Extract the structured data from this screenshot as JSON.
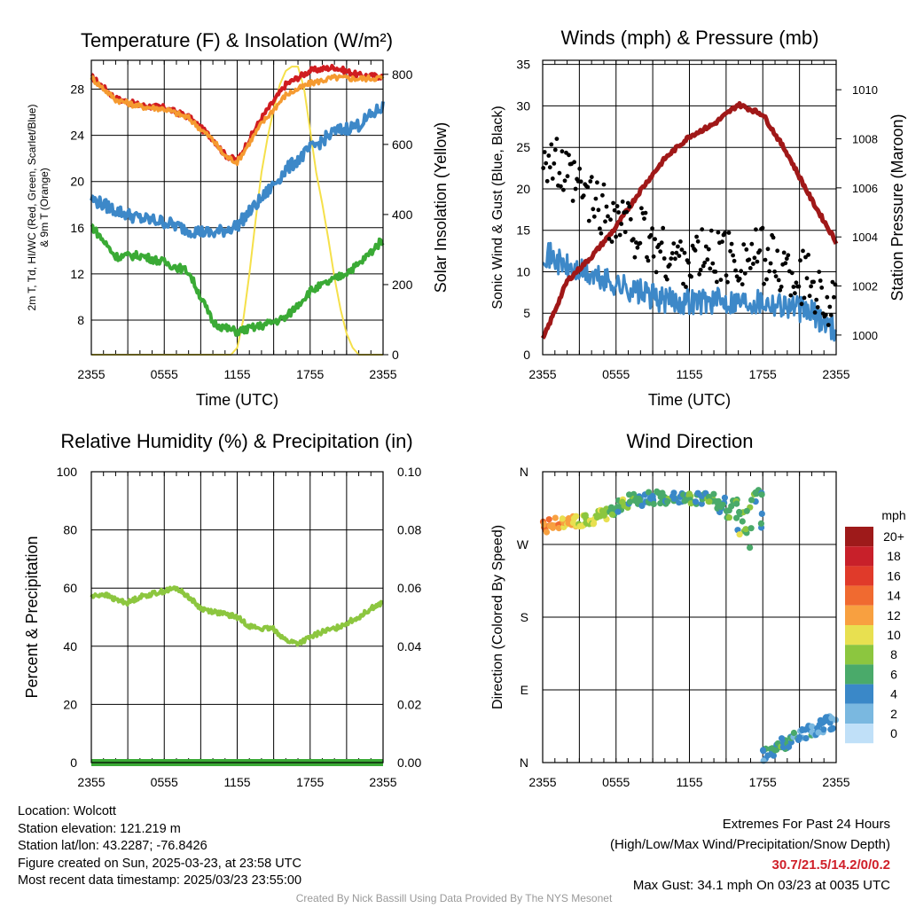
{
  "colors": {
    "red": "#d01c20",
    "orange": "#f59a30",
    "blue": "#3d88c8",
    "green": "#3aaa35",
    "yellow": "#f5e04a",
    "maroon": "#a01818",
    "black": "#000000",
    "rh": "#8cc63f",
    "precip": "#3aaa35"
  },
  "chart_data": [
    {
      "type": "line",
      "title": "Temperature (F) & Insolation (W/m²)",
      "xlabel": "Time (UTC)",
      "ylabel": "2m T, Td, HI/WC (Red, Green, Scarlet/Blue) & 9m T (Orange)",
      "y2label": "Solar Insolation (Yellow)",
      "ticks": [
        "2355",
        "0555",
        "1155",
        "1755",
        "2355"
      ],
      "ylim": [
        5,
        30.5
      ],
      "yticks": [
        8,
        12,
        16,
        20,
        24,
        28
      ],
      "y2lim": [
        0,
        840
      ],
      "y2ticks": [
        0,
        200,
        400,
        600,
        800
      ],
      "x": [
        0,
        2,
        4,
        6,
        8,
        10,
        11,
        12,
        14,
        16,
        18,
        20,
        22,
        24
      ],
      "series": [
        {
          "color": "red",
          "values": [
            29.1,
            27.2,
            26.6,
            26.4,
            25.6,
            23.7,
            22.3,
            21.8,
            25.5,
            28.4,
            29.6,
            29.9,
            29.2,
            29.1
          ]
        },
        {
          "color": "orange",
          "values": [
            29.0,
            27.1,
            26.5,
            26.3,
            25.5,
            23.6,
            22.2,
            21.7,
            25.0,
            27.5,
            28.5,
            29.0,
            28.9,
            29.0
          ]
        },
        {
          "color": "blue",
          "values": [
            18.5,
            17.5,
            16.8,
            16.5,
            15.8,
            15.5,
            15.8,
            16.2,
            18.5,
            21.0,
            22.8,
            24.3,
            24.9,
            26.5
          ]
        },
        {
          "color": "green",
          "values": [
            16.2,
            13.5,
            13.6,
            13.0,
            12.2,
            7.8,
            7.3,
            7.0,
            7.5,
            8.2,
            10.5,
            11.5,
            12.8,
            15.0
          ]
        }
      ],
      "insolation": {
        "x": [
          0,
          11.5,
          12,
          12.5,
          13,
          13.5,
          14,
          14.5,
          15,
          15.5,
          16,
          16.5,
          17,
          17.5,
          18,
          18.5,
          19,
          19.5,
          20,
          20.5,
          21,
          21.5,
          22,
          24
        ],
        "values": [
          0,
          0,
          20,
          100,
          230,
          380,
          520,
          620,
          700,
          770,
          810,
          822,
          822,
          760,
          640,
          520,
          430,
          330,
          220,
          130,
          60,
          20,
          0,
          0
        ]
      }
    },
    {
      "type": "line",
      "title": "Winds (mph) & Pressure (mb)",
      "xlabel": "Time (UTC)",
      "ylabel": "Sonic Wind & Gust (Blue, Black)",
      "y2label": "Station Pressure (Maroon)",
      "ticks": [
        "2355",
        "0555",
        "1155",
        "1755",
        "2355"
      ],
      "ylim": [
        0,
        35.5
      ],
      "yticks": [
        0,
        5,
        10,
        15,
        20,
        25,
        30,
        35
      ],
      "y2lim": [
        999.2,
        1011.2
      ],
      "y2ticks": [
        1000,
        1002,
        1004,
        1006,
        1008,
        1010
      ],
      "x": [
        0,
        2,
        4,
        6,
        8,
        10,
        12,
        14,
        16,
        18,
        20,
        22,
        24
      ],
      "wind": [
        12.5,
        10.5,
        9.5,
        8.5,
        7.5,
        6.5,
        6.5,
        6.5,
        6.5,
        6.5,
        6.0,
        5.0,
        3.0
      ],
      "gust": [
        25.0,
        21.0,
        18.5,
        16.5,
        14.5,
        12.0,
        11.5,
        12.0,
        11.5,
        12.0,
        10.0,
        9.0,
        5.0
      ],
      "pressure": [
        999.8,
        1002.2,
        1003.2,
        1004.4,
        1005.9,
        1007.2,
        1008.1,
        1008.6,
        1009.4,
        1009.0,
        1007.4,
        1005.5,
        1003.8
      ]
    },
    {
      "type": "line",
      "title": "Relative Humidity (%) & Precipitation (in)",
      "ylabel": "Percent & Precipitation",
      "ticks": [
        "2355",
        "0555",
        "1155",
        "1755",
        "2355"
      ],
      "ylim": [
        0,
        100
      ],
      "yticks": [
        0,
        20,
        40,
        60,
        80,
        100
      ],
      "y2lim": [
        0,
        0.1
      ],
      "y2ticks": [
        "0.00",
        "0.02",
        "0.04",
        "0.06",
        "0.08",
        "0.10"
      ],
      "x": [
        0,
        1,
        2,
        3,
        4,
        5,
        6,
        7,
        8,
        9,
        10,
        11,
        12,
        13,
        14,
        15,
        16,
        17,
        18,
        19,
        20,
        21,
        22,
        23,
        24
      ],
      "rh": [
        57,
        58,
        56,
        55,
        57,
        58,
        59,
        60,
        57,
        53,
        52,
        51,
        50,
        47,
        46,
        46,
        42,
        41,
        43,
        45,
        46,
        48,
        50,
        53,
        55
      ],
      "precip": 0
    },
    {
      "type": "scatter",
      "title": "Wind Direction",
      "ylabel": "Direction (Colored By Speed)",
      "ticks": [
        "2355",
        "0555",
        "1155",
        "1755",
        "2355"
      ],
      "ylim": [
        0,
        360
      ],
      "yticklabels": [
        "N",
        "E",
        "S",
        "W",
        "N"
      ],
      "legend": {
        "title": "mph",
        "labels": [
          "20+",
          "18",
          "16",
          "14",
          "12",
          "10",
          "8",
          "6",
          "4",
          "2",
          "0"
        ],
        "colors": [
          "#9e1a1a",
          "#c8202a",
          "#e03a2a",
          "#f06a30",
          "#f8a040",
          "#e8e050",
          "#8cc63f",
          "#4aaa6a",
          "#3a88c8",
          "#7ab8e0",
          "#c0e0f8"
        ]
      },
      "points_x": [
        0,
        0.5,
        1,
        1.5,
        2,
        2.5,
        3,
        3.5,
        4,
        4.5,
        5,
        5.5,
        6,
        6.5,
        7,
        7.5,
        8,
        8.5,
        9,
        9.5,
        10,
        10.5,
        11,
        11.5,
        12,
        12.5,
        13,
        13.5,
        14,
        14.5,
        15,
        15.5,
        16,
        16.5,
        17,
        17.5,
        18,
        18.5,
        19,
        19.5,
        20,
        20.5,
        21,
        21.5,
        22,
        22.5,
        23,
        23.5
      ],
      "points_dir": [
        292,
        294,
        296,
        298,
        298,
        299,
        300,
        302,
        303,
        305,
        308,
        312,
        318,
        322,
        325,
        326,
        325,
        327,
        328,
        327,
        326,
        328,
        330,
        327,
        325,
        328,
        330,
        326,
        318,
        320,
        310,
        322,
        305,
        315,
        330,
        335,
        10,
        15,
        20,
        24,
        25,
        30,
        35,
        38,
        42,
        45,
        50,
        48
      ],
      "points_speed": [
        13,
        12,
        13,
        12,
        11,
        10,
        10,
        9,
        9,
        8,
        8,
        7,
        6,
        8,
        6,
        5,
        4,
        6,
        5,
        7,
        6,
        5,
        4,
        6,
        7,
        5,
        6,
        7,
        5,
        6,
        7,
        6,
        8,
        7,
        6,
        5,
        4,
        5,
        6,
        4,
        5,
        4,
        3,
        4,
        3,
        3,
        4,
        3
      ]
    }
  ],
  "info": {
    "location": "Location: Wolcott",
    "elevation": "Station elevation: 121.219 m",
    "latlon": "Station lat/lon: 43.2287; -76.8426",
    "created": "Figure created on Sun, 2025-03-23, at 23:58 UTC",
    "recent": "Most recent data timestamp: 2025/03/23 23:55:00"
  },
  "extremes": {
    "title": "Extremes For Past 24 Hours",
    "subtitle": "(High/Low/Max Wind/Precipitation/Snow Depth)",
    "values": "30.7/21.5/14.2/0/0.2",
    "gust": "Max Gust: 34.1 mph On 03/23 at 0035 UTC"
  },
  "footer": "Created By Nick Bassill Using Data Provided By The NYS Mesonet"
}
